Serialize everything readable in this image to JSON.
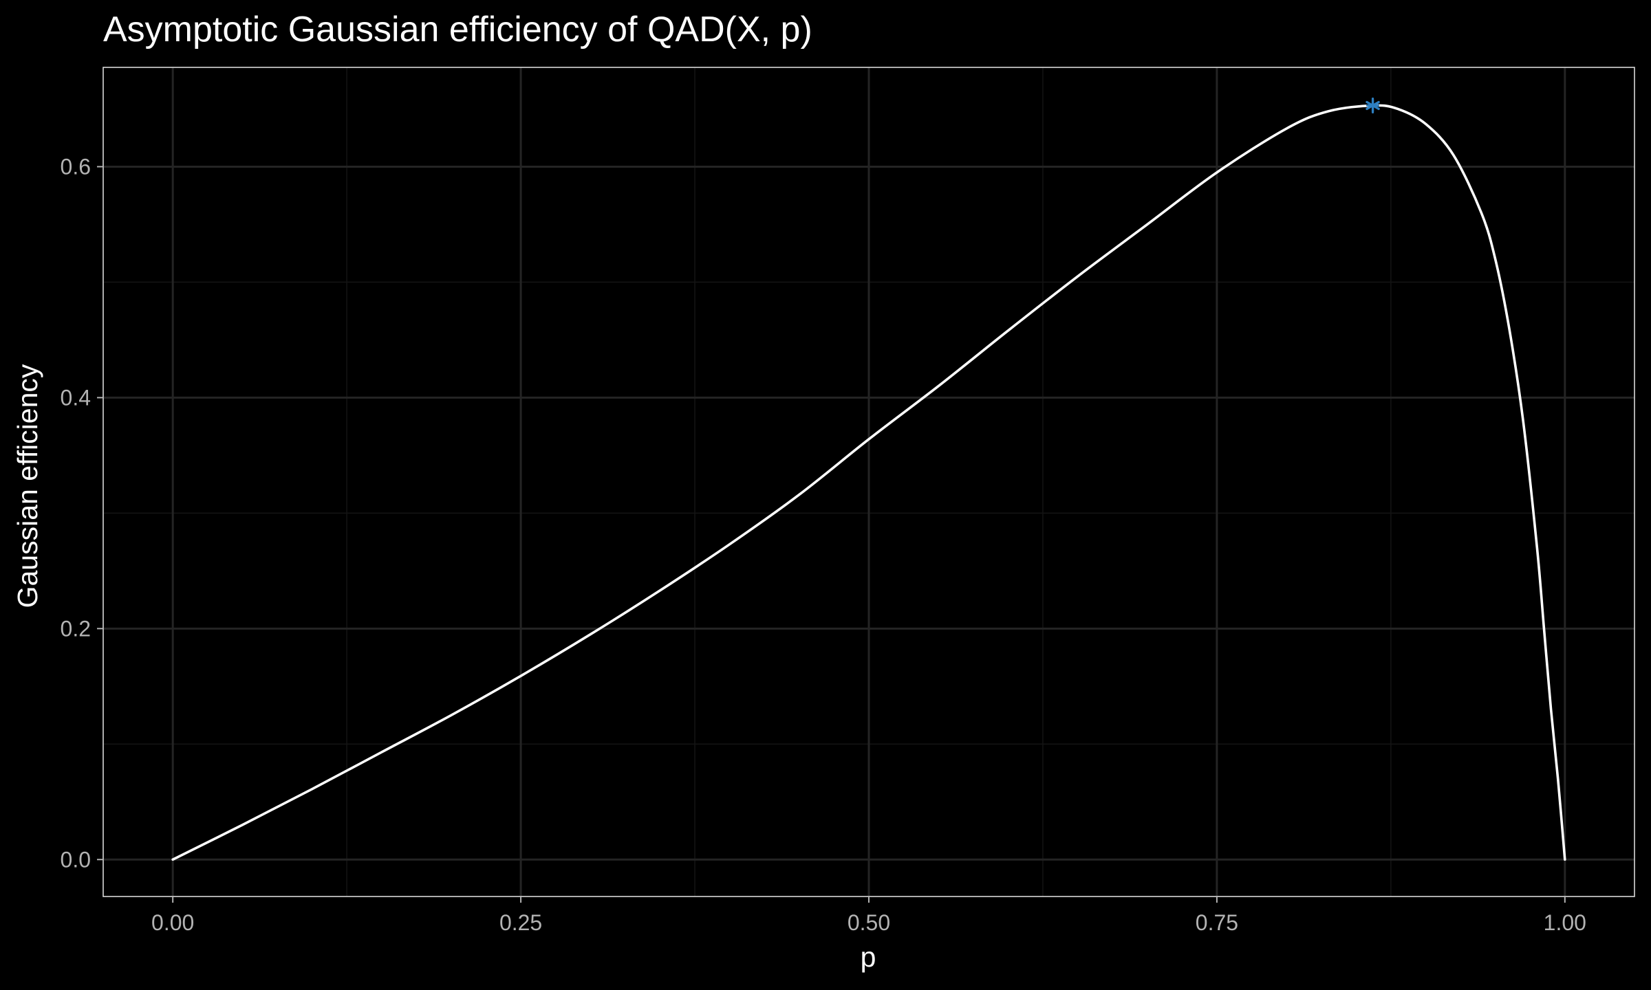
{
  "chart_data": {
    "type": "line",
    "title": "Asymptotic Gaussian efficiency of QAD(X, p)",
    "xlabel": "p",
    "ylabel": "Gaussian efficiency",
    "xlim": [
      -0.05,
      1.05
    ],
    "ylim": [
      -0.032,
      0.686
    ],
    "x_ticks": [
      0.0,
      0.25,
      0.5,
      0.75,
      1.0
    ],
    "x_tick_labels": [
      "0.00",
      "0.25",
      "0.50",
      "0.75",
      "1.00"
    ],
    "y_ticks": [
      0.0,
      0.2,
      0.4,
      0.6
    ],
    "y_tick_labels": [
      "0.0",
      "0.2",
      "0.4",
      "0.6"
    ],
    "grid": true,
    "series": [
      {
        "color": "#ffffff",
        "x": [
          0.0,
          0.05,
          0.1,
          0.15,
          0.2,
          0.25,
          0.3,
          0.35,
          0.4,
          0.45,
          0.5,
          0.55,
          0.6,
          0.65,
          0.7,
          0.75,
          0.8,
          0.83,
          0.862,
          0.88,
          0.9,
          0.92,
          0.94,
          0.95,
          0.96,
          0.97,
          0.98,
          0.985,
          0.99,
          0.995,
          1.0
        ],
        "y": [
          0.0,
          0.03,
          0.061,
          0.093,
          0.125,
          0.159,
          0.195,
          0.233,
          0.273,
          0.316,
          0.364,
          0.41,
          0.458,
          0.505,
          0.55,
          0.595,
          0.633,
          0.648,
          0.653,
          0.65,
          0.637,
          0.61,
          0.56,
          0.52,
          0.46,
          0.38,
          0.27,
          0.2,
          0.13,
          0.07,
          0.0
        ]
      }
    ],
    "annotations": [
      {
        "marker": "asterisk",
        "x": 0.862,
        "y": 0.653,
        "color": "#2d7fc1"
      }
    ]
  }
}
